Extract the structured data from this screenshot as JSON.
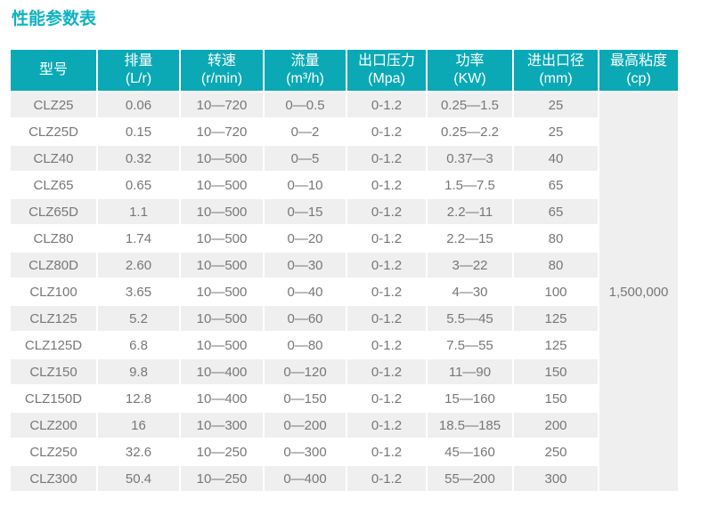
{
  "page": {
    "title": "性能参数表"
  },
  "colors": {
    "accent_teal": "#0aa9b5",
    "title_teal": "#0db3c1",
    "row_alt_gray": "#efefef",
    "body_text": "#777777",
    "header_text": "#ffffff"
  },
  "table": {
    "columns": [
      {
        "label": "型号",
        "unit": ""
      },
      {
        "label": "排量",
        "unit": "(L/r)"
      },
      {
        "label": "转速",
        "unit": "(r/min)"
      },
      {
        "label": "流量",
        "unit": "(m³/h)"
      },
      {
        "label": "出口压力",
        "unit": "(Mpa)"
      },
      {
        "label": "功率",
        "unit": "(KW)"
      },
      {
        "label": "进出口径",
        "unit": "(mm)"
      },
      {
        "label": "最高粘度",
        "unit": "(cp)"
      }
    ],
    "rows": [
      [
        "CLZ25",
        "0.06",
        "10—720",
        "0—0.5",
        "0-1.2",
        "0.25—1.5",
        "25"
      ],
      [
        "CLZ25D",
        "0.15",
        "10—720",
        "0—2",
        "0-1.2",
        "0.25—2.2",
        "25"
      ],
      [
        "CLZ40",
        "0.32",
        "10—500",
        "0—5",
        "0-1.2",
        "0.37—3",
        "40"
      ],
      [
        "CLZ65",
        "0.65",
        "10—500",
        "0—10",
        "0-1.2",
        "1.5—7.5",
        "65"
      ],
      [
        "CLZ65D",
        "1.1",
        "10—500",
        "0—15",
        "0-1.2",
        "2.2—11",
        "65"
      ],
      [
        "CLZ80",
        "1.74",
        "10—500",
        "0—20",
        "0-1.2",
        "2.2—15",
        "80"
      ],
      [
        "CLZ80D",
        "2.60",
        "10—500",
        "0—30",
        "0-1.2",
        "3—22",
        "80"
      ],
      [
        "CLZ100",
        "3.65",
        "10—500",
        "0—40",
        "0-1.2",
        "4—30",
        "100"
      ],
      [
        "CLZ125",
        "5.2",
        "10—500",
        "0—60",
        "0-1.2",
        "5.5—45",
        "125"
      ],
      [
        "CLZ125D",
        "6.8",
        "10—500",
        "0—80",
        "0-1.2",
        "7.5—55",
        "125"
      ],
      [
        "CLZ150",
        "9.8",
        "10—400",
        "0—120",
        "0-1.2",
        "11—90",
        "150"
      ],
      [
        "CLZ150D",
        "12.8",
        "10—400",
        "0—150",
        "0-1.2",
        "15—160",
        "150"
      ],
      [
        "CLZ200",
        "16",
        "10—300",
        "0—200",
        "0-1.2",
        "18.5—185",
        "200"
      ],
      [
        "CLZ250",
        "32.6",
        "10—250",
        "0—300",
        "0-1.2",
        "45—160",
        "250"
      ],
      [
        "CLZ300",
        "50.4",
        "10—250",
        "0—400",
        "0-1.2",
        "55—200",
        "300"
      ]
    ],
    "merged_viscosity_value": "1,500,000"
  }
}
